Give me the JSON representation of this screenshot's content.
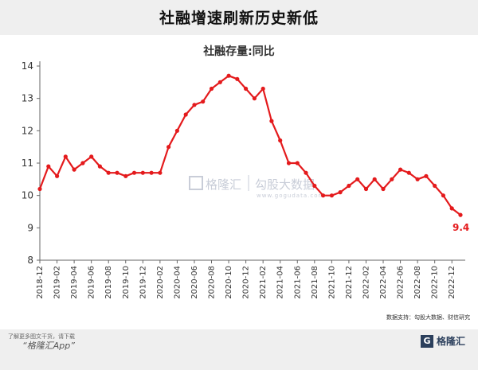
{
  "headline": "社融增速刷新历史新低",
  "chart_data": {
    "type": "line",
    "title": "社融存量:同比",
    "ylim": [
      8,
      14
    ],
    "yticks": [
      8,
      9,
      10,
      11,
      12,
      13,
      14
    ],
    "x_tick_labels": [
      "2018-12",
      "2019-02",
      "2019-04",
      "2019-06",
      "2019-08",
      "2019-10",
      "2019-12",
      "2020-02",
      "2020-04",
      "2020-06",
      "2020-08",
      "2020-10",
      "2020-12",
      "2021-02",
      "2021-04",
      "2021-06",
      "2021-08",
      "2021-10",
      "2021-12",
      "2022-02",
      "2022-04",
      "2022-06",
      "2022-08",
      "2022-10",
      "2022-12"
    ],
    "x": [
      "2018-12",
      "2019-01",
      "2019-02",
      "2019-03",
      "2019-04",
      "2019-05",
      "2019-06",
      "2019-07",
      "2019-08",
      "2019-09",
      "2019-10",
      "2019-11",
      "2019-12",
      "2020-01",
      "2020-02",
      "2020-03",
      "2020-04",
      "2020-05",
      "2020-06",
      "2020-07",
      "2020-08",
      "2020-09",
      "2020-10",
      "2020-11",
      "2020-12",
      "2021-01",
      "2021-02",
      "2021-03",
      "2021-04",
      "2021-05",
      "2021-06",
      "2021-07",
      "2021-08",
      "2021-09",
      "2021-10",
      "2021-11",
      "2021-12",
      "2022-01",
      "2022-02",
      "2022-03",
      "2022-04",
      "2022-05",
      "2022-06",
      "2022-07",
      "2022-08",
      "2022-09",
      "2022-10",
      "2022-11",
      "2022-12",
      "2023-01"
    ],
    "values": [
      10.2,
      10.9,
      10.6,
      11.2,
      10.8,
      11.0,
      11.2,
      10.9,
      10.7,
      10.7,
      10.6,
      10.7,
      10.7,
      10.7,
      10.7,
      11.5,
      12.0,
      12.5,
      12.8,
      12.9,
      13.3,
      13.5,
      13.7,
      13.6,
      13.3,
      13.0,
      13.3,
      12.3,
      11.7,
      11.0,
      11.0,
      10.7,
      10.3,
      10.0,
      10.0,
      10.1,
      10.3,
      10.5,
      10.2,
      10.5,
      10.2,
      10.5,
      10.8,
      10.7,
      10.5,
      10.6,
      10.3,
      10.0,
      9.6,
      9.4
    ],
    "end_label": "9.4",
    "line_color": "#e41a1c",
    "grid": false
  },
  "watermark": {
    "logo_text": "格隆汇",
    "partner_text": "勾股大数据",
    "url": "www.gogudata.com"
  },
  "source_note": "数据支持：勾股大数据、财信研究",
  "footer": {
    "cta_line": "了解更多图文干货，请下载",
    "app_name": "“格隆汇App”",
    "brand_icon": "G",
    "brand_name": "格隆汇"
  }
}
